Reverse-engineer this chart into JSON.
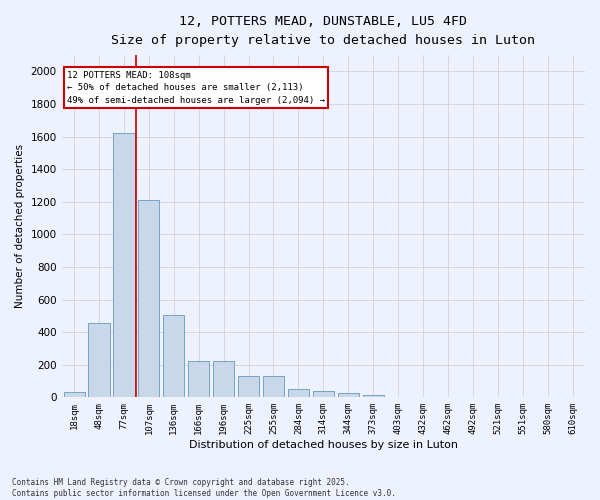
{
  "title_line1": "12, POTTERS MEAD, DUNSTABLE, LU5 4FD",
  "title_line2": "Size of property relative to detached houses in Luton",
  "xlabel": "Distribution of detached houses by size in Luton",
  "ylabel": "Number of detached properties",
  "categories": [
    "18sqm",
    "48sqm",
    "77sqm",
    "107sqm",
    "136sqm",
    "166sqm",
    "196sqm",
    "225sqm",
    "255sqm",
    "284sqm",
    "314sqm",
    "344sqm",
    "373sqm",
    "403sqm",
    "432sqm",
    "462sqm",
    "492sqm",
    "521sqm",
    "551sqm",
    "580sqm",
    "610sqm"
  ],
  "values": [
    35,
    455,
    1620,
    1210,
    505,
    220,
    220,
    130,
    130,
    50,
    40,
    25,
    15,
    0,
    0,
    0,
    0,
    0,
    0,
    0,
    0
  ],
  "bar_color": "#c8d8ea",
  "bar_edge_color": "#6699bb",
  "grid_color": "#cccccc",
  "annotation_box_color": "#cc0000",
  "vertical_line_color": "#cc0000",
  "vertical_line_x": 3.0,
  "annotation_text_line1": "12 POTTERS MEAD: 108sqm",
  "annotation_text_line2": "← 50% of detached houses are smaller (2,113)",
  "annotation_text_line3": "49% of semi-detached houses are larger (2,094) →",
  "footer_line1": "Contains HM Land Registry data © Crown copyright and database right 2025.",
  "footer_line2": "Contains public sector information licensed under the Open Government Licence v3.0.",
  "ylim": [
    0,
    2100
  ],
  "yticks": [
    0,
    200,
    400,
    600,
    800,
    1000,
    1200,
    1400,
    1600,
    1800,
    2000
  ],
  "background_color": "#eef2ff",
  "plot_background": "#eef2ff"
}
